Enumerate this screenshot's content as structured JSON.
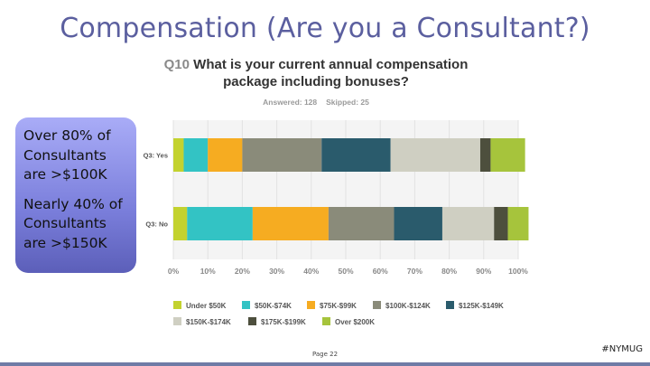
{
  "slide": {
    "title": "Compensation (Are you a Consultant?)",
    "page_label": "Page 22",
    "tag": "#NYMUG"
  },
  "callout": {
    "line1": "Over 80% of Consultants are >$100K",
    "line2": "Nearly 40% of Consultants are >$150K"
  },
  "question": {
    "number": "Q10",
    "text": "What is your current annual compensation package including bonuses?",
    "answered": "Answered: 128",
    "skipped": "Skipped: 25"
  },
  "colors": [
    "#c3d22f",
    "#33c3c4",
    "#f6ac21",
    "#8a8b7a",
    "#2a5b6c",
    "#cfcfc2",
    "#4d4f3d",
    "#a6c43c"
  ],
  "chart_data": {
    "type": "bar",
    "orientation": "horizontal",
    "stacked": true,
    "categories": [
      "Q3: Yes",
      "Q3: No"
    ],
    "series": [
      {
        "name": "Under $50K",
        "values": [
          3,
          4
        ]
      },
      {
        "name": "$50K-$74K",
        "values": [
          7,
          19
        ]
      },
      {
        "name": "$75K-$99K",
        "values": [
          10,
          22
        ]
      },
      {
        "name": "$100K-$124K",
        "values": [
          23,
          19
        ]
      },
      {
        "name": "$125K-$149K",
        "values": [
          20,
          14
        ]
      },
      {
        "name": "$150K-$174K",
        "values": [
          26,
          15
        ]
      },
      {
        "name": "$175K-$199K",
        "values": [
          3,
          4
        ]
      },
      {
        "name": "Over $200K",
        "values": [
          10,
          6
        ]
      }
    ],
    "xlim": [
      0,
      100
    ],
    "xticks": [
      "0%",
      "10%",
      "20%",
      "30%",
      "40%",
      "50%",
      "60%",
      "70%",
      "80%",
      "90%",
      "100%"
    ],
    "grid": true,
    "legend_position": "bottom"
  }
}
